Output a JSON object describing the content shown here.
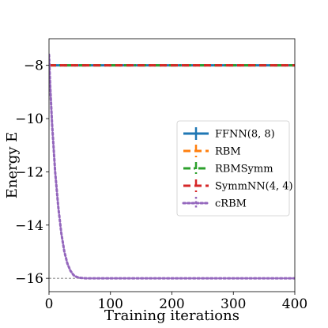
{
  "chart_data": {
    "type": "line",
    "title": "",
    "xlabel": "Training iterations",
    "ylabel": "Energy E",
    "xlim": [
      0,
      400
    ],
    "ylim": [
      -16.5,
      -7.0
    ],
    "xticks": [
      0,
      100,
      200,
      300,
      400
    ],
    "xtick_labels": [
      "0",
      "100",
      "200",
      "300",
      "400"
    ],
    "yticks": [
      -16,
      -14,
      -12,
      -10,
      -8
    ],
    "ytick_labels": [
      "−16",
      "−14",
      "−12",
      "−10",
      "−8"
    ],
    "grid": false,
    "legend_position": "center-right",
    "reference_line": {
      "y": -16.0,
      "style": "dashed",
      "color": "#555555"
    },
    "series": [
      {
        "name": "FFNN(8, 8)",
        "color": "#1f77b4",
        "linestyle": "solid",
        "x": [
          0,
          50,
          100,
          150,
          200,
          250,
          300,
          350,
          400
        ],
        "y": [
          -8.0,
          -8.0,
          -8.0,
          -8.0,
          -8.0,
          -8.0,
          -8.0,
          -8.0,
          -8.0
        ]
      },
      {
        "name": "RBM",
        "color": "#ff7f0e",
        "linestyle": "dashed",
        "x": [
          0,
          50,
          100,
          150,
          200,
          250,
          300,
          350,
          400
        ],
        "y": [
          -8.0,
          -8.0,
          -8.0,
          -8.0,
          -8.0,
          -8.0,
          -8.0,
          -8.0,
          -8.0
        ]
      },
      {
        "name": "RBMSymm",
        "color": "#2ca02c",
        "linestyle": "dashdot",
        "x": [
          0,
          50,
          100,
          150,
          200,
          250,
          300,
          350,
          400
        ],
        "y": [
          -8.0,
          -8.0,
          -8.0,
          -8.0,
          -8.0,
          -8.0,
          -8.0,
          -8.0,
          -8.0
        ]
      },
      {
        "name": "SymmNN(4, 4)",
        "color": "#d62728",
        "linestyle": "dashed",
        "x": [
          0,
          50,
          100,
          150,
          200,
          250,
          300,
          350,
          400
        ],
        "y": [
          -8.0,
          -8.0,
          -8.0,
          -8.0,
          -8.0,
          -8.0,
          -8.0,
          -8.0,
          -8.0
        ]
      },
      {
        "name": "cRBM",
        "color": "#9467bd",
        "linestyle": "dotted",
        "x": [
          0,
          2,
          5,
          10,
          15,
          20,
          25,
          30,
          35,
          40,
          45,
          50,
          60,
          80,
          100,
          150,
          200,
          250,
          300,
          350,
          400
        ],
        "y": [
          -7.6,
          -8.8,
          -10.2,
          -12.0,
          -13.3,
          -14.3,
          -15.0,
          -15.45,
          -15.72,
          -15.88,
          -15.95,
          -15.98,
          -16.0,
          -16.0,
          -16.0,
          -16.0,
          -16.0,
          -16.0,
          -16.0,
          -16.0,
          -16.0
        ]
      }
    ]
  }
}
